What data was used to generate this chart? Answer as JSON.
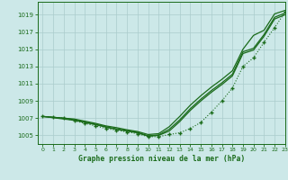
{
  "title": "Graphe pression niveau de la mer (hPa)",
  "bg_color": "#cce8e8",
  "grid_color": "#aacccc",
  "line_color": "#1a6b1a",
  "xlim": [
    -0.5,
    23
  ],
  "ylim": [
    1004.0,
    1020.5
  ],
  "yticks": [
    1005,
    1007,
    1009,
    1011,
    1013,
    1015,
    1017,
    1019
  ],
  "xticks": [
    0,
    1,
    2,
    3,
    4,
    5,
    6,
    7,
    8,
    9,
    10,
    11,
    12,
    13,
    14,
    15,
    16,
    17,
    18,
    19,
    20,
    21,
    22,
    23
  ],
  "solid1": [
    1007.2,
    1007.1,
    1007.0,
    1006.9,
    1006.65,
    1006.4,
    1006.1,
    1005.9,
    1005.65,
    1005.45,
    1005.1,
    1005.2,
    1006.0,
    1007.2,
    1008.5,
    1009.6,
    1010.6,
    1011.5,
    1012.5,
    1015.0,
    1016.6,
    1017.2,
    1019.1,
    1019.5
  ],
  "solid2": [
    1007.2,
    1007.1,
    1007.0,
    1006.8,
    1006.55,
    1006.3,
    1006.0,
    1005.75,
    1005.55,
    1005.35,
    1004.95,
    1005.05,
    1005.7,
    1006.8,
    1008.1,
    1009.2,
    1010.2,
    1011.1,
    1012.1,
    1014.7,
    1015.1,
    1016.7,
    1018.7,
    1019.2
  ],
  "solid3": [
    1007.2,
    1007.05,
    1006.9,
    1006.75,
    1006.5,
    1006.25,
    1005.95,
    1005.7,
    1005.5,
    1005.3,
    1004.9,
    1005.0,
    1005.5,
    1006.6,
    1007.9,
    1009.0,
    1010.0,
    1010.9,
    1011.9,
    1014.5,
    1014.9,
    1016.5,
    1018.5,
    1019.0
  ],
  "dotted": [
    1007.2,
    1007.1,
    1007.0,
    1006.7,
    1006.4,
    1006.1,
    1005.8,
    1005.6,
    1005.4,
    1005.2,
    1004.85,
    1004.85,
    1005.1,
    1005.3,
    1005.8,
    1006.5,
    1007.7,
    1009.0,
    1010.5,
    1013.0,
    1014.0,
    1015.8,
    1017.5,
    1019.3
  ]
}
